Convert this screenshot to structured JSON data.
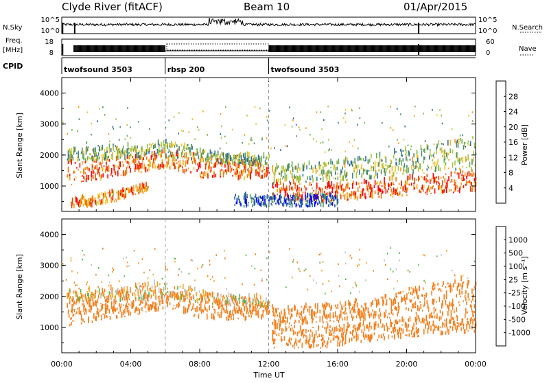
{
  "header": {
    "station": "Clyde River (fitACF)",
    "beam": "Beam 10",
    "date": "01/Apr/2015"
  },
  "side_labels": {
    "nsky": "N.Sky",
    "freq_line1": "Freq.",
    "freq_line2": "[MHz]",
    "cpid": "CPID",
    "nsearch": "N.Search",
    "nave": "Nave"
  },
  "noise_panel": {
    "ticks_left": [
      "10^5",
      "10^0"
    ],
    "ticks_right": [
      "10^5",
      "10^0"
    ]
  },
  "freq_panel": {
    "ticks_left": [
      "18",
      "8"
    ],
    "ticks_right": [
      "60",
      "0"
    ]
  },
  "cpid_segments": [
    {
      "label": "twofsound 3503",
      "start_hour": 0,
      "end_hour": 6
    },
    {
      "label": "rbsp 200",
      "start_hour": 6,
      "end_hour": 12
    },
    {
      "label": "twofsound 3503",
      "start_hour": 12,
      "end_hour": 24
    }
  ],
  "x_axis": {
    "label": "Time UT",
    "range_hours": [
      0,
      24
    ],
    "tick_hours": [
      0,
      4,
      8,
      12,
      16,
      20,
      24
    ],
    "tick_labels": [
      "00:00",
      "04:00",
      "08:00",
      "12:00",
      "16:00",
      "20:00",
      "00:00"
    ]
  },
  "y_axis": {
    "label": "Slant Range [km]",
    "range": [
      180,
      4500
    ],
    "ticks": [
      1000,
      2000,
      3000,
      4000
    ],
    "tick_labels": [
      "1000",
      "2000",
      "3000",
      "4000"
    ]
  },
  "colors": {
    "power": [
      "#0000ff",
      "#1f4fb4",
      "#2f6e9a",
      "#4a8c6b",
      "#6fb04a",
      "#a9c53f",
      "#f0c020",
      "#f59a10",
      "#f07a05",
      "#e84a0a",
      "#ff0000"
    ],
    "velocity": [
      "#ff0000",
      "#f04d08",
      "#f37f1d",
      "#f6a020",
      "#bfbfbf",
      "#52b947",
      "#3a8a6c",
      "#2a5ba8",
      "#2020d0"
    ]
  },
  "chart_data": [
    {
      "type": "heatmap",
      "name": "power",
      "colorbar_title": "Power [dB]",
      "colorbar_range": [
        0,
        32
      ],
      "colorbar_ticks": [
        "4",
        "8",
        "12",
        "16",
        "20",
        "24",
        "28"
      ],
      "bands": [
        {
          "x": [
            0.3,
            2,
            4,
            6,
            8,
            10,
            12
          ],
          "lower": [
            1000,
            1150,
            1350,
            1550,
            1250,
            1150,
            1250
          ],
          "upper": [
            1800,
            1800,
            1900,
            2100,
            1900,
            1700,
            1700
          ],
          "value": 26
        },
        {
          "x": [
            0.3,
            3,
            6,
            9,
            12
          ],
          "lower": [
            1750,
            1800,
            1900,
            1700,
            1600
          ],
          "upper": [
            2100,
            2200,
            2400,
            2000,
            1900
          ],
          "value": 14
        },
        {
          "x": [
            12.2,
            15,
            18,
            21,
            24
          ],
          "lower": [
            500,
            450,
            550,
            700,
            800
          ],
          "upper": [
            1100,
            1000,
            1100,
            1300,
            1500
          ],
          "value": 27
        },
        {
          "x": [
            12.2,
            15,
            18,
            21,
            24
          ],
          "lower": [
            1000,
            1100,
            1200,
            1400,
            1500
          ],
          "upper": [
            1600,
            1700,
            1900,
            2300,
            2600
          ],
          "value": 14
        },
        {
          "x": [
            0.5,
            2,
            4,
            5
          ],
          "lower": [
            250,
            300,
            600,
            800
          ],
          "upper": [
            500,
            700,
            900,
            1000
          ],
          "value": 24
        },
        {
          "x": [
            10,
            12,
            14,
            16
          ],
          "lower": [
            300,
            300,
            300,
            300
          ],
          "upper": [
            700,
            600,
            700,
            650
          ],
          "value": 6
        }
      ]
    },
    {
      "type": "heatmap",
      "name": "velocity",
      "colorbar_title": "Velocity [m s⁻¹]",
      "colorbar_ticks": [
        "1000",
        "500",
        "100",
        "25",
        "-25",
        "-100",
        "-500",
        "-1000"
      ],
      "bands": [
        {
          "x": [
            0.3,
            2,
            4,
            6,
            8,
            10,
            12
          ],
          "lower": [
            1000,
            1150,
            1350,
            1550,
            1250,
            1150,
            1250
          ],
          "upper": [
            1800,
            1800,
            1900,
            2100,
            1900,
            1700,
            1700
          ],
          "value": -250
        },
        {
          "x": [
            0.3,
            3,
            6,
            9,
            12
          ],
          "lower": [
            1750,
            1800,
            1900,
            1700,
            1600
          ],
          "upper": [
            2100,
            2200,
            2400,
            2000,
            1900
          ],
          "value": -60
        },
        {
          "x": [
            12.2,
            15,
            18,
            21,
            24
          ],
          "lower": [
            300,
            300,
            500,
            700,
            800
          ],
          "upper": [
            1000,
            1000,
            1100,
            1300,
            1500
          ],
          "value": -250
        },
        {
          "x": [
            12.2,
            15,
            18,
            21,
            24
          ],
          "lower": [
            1000,
            1100,
            1200,
            1400,
            1500
          ],
          "upper": [
            1600,
            1700,
            1900,
            2300,
            2600
          ],
          "value": -300
        }
      ]
    }
  ]
}
